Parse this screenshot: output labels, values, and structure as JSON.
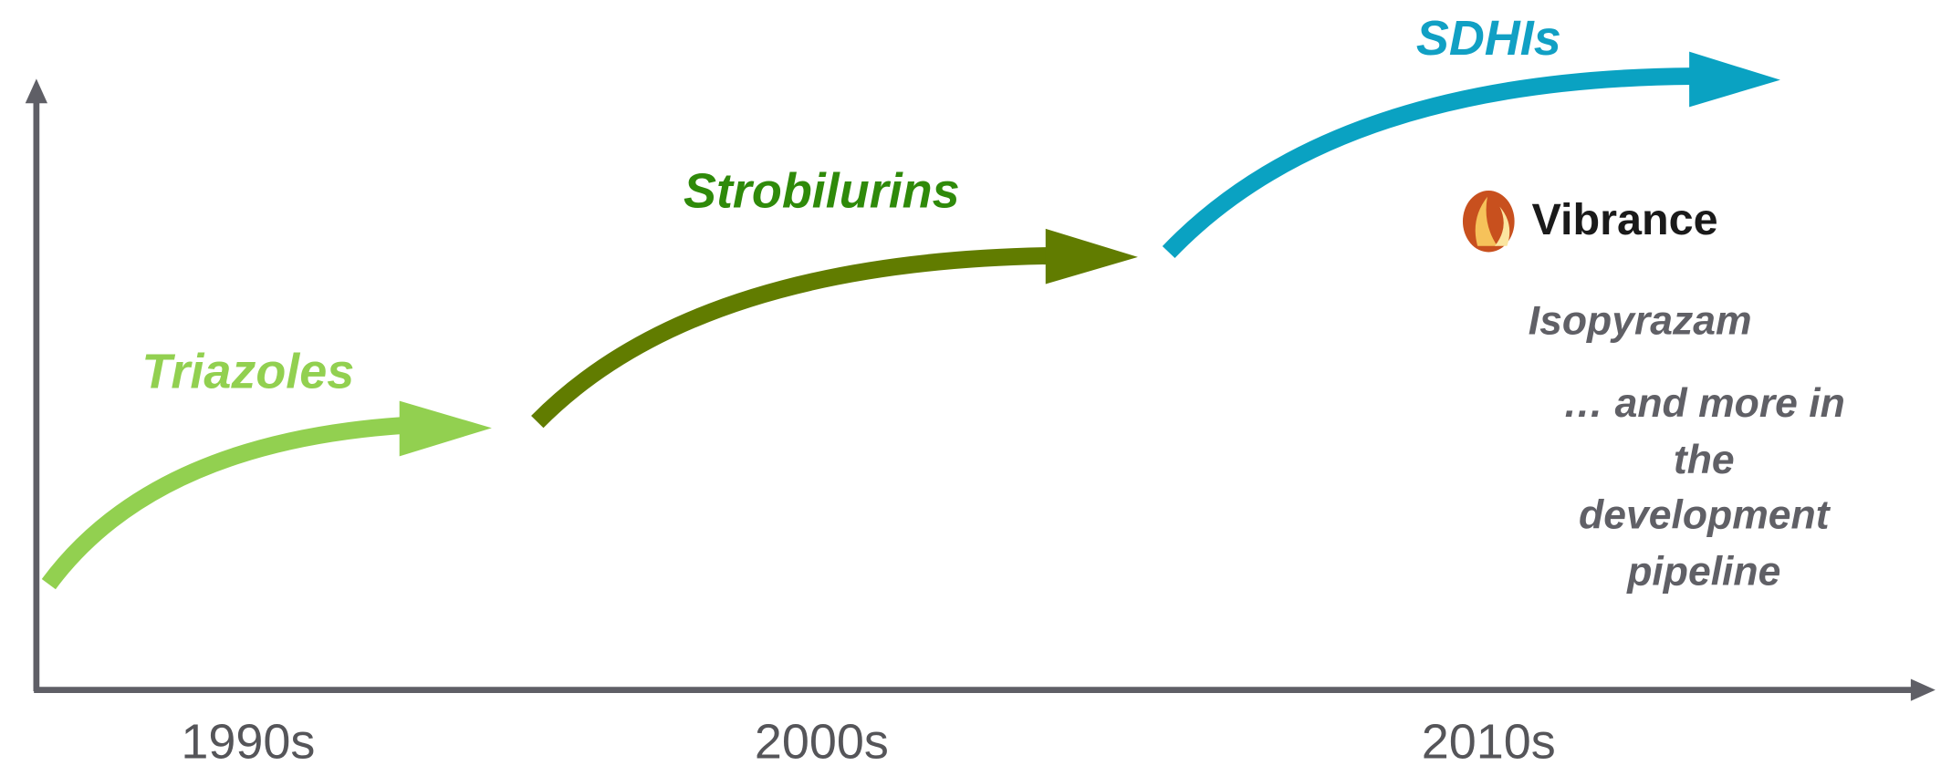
{
  "classes": [
    {
      "label": "Triazoles",
      "era": "1990s"
    },
    {
      "label": "Strobilurins",
      "era": "2000s"
    },
    {
      "label": "SDHIs",
      "era": "2010s"
    }
  ],
  "products": {
    "logo": "Vibrance",
    "compound": "Isopyrazam",
    "pipeline": [
      "… and more in",
      "the",
      "development",
      "pipeline"
    ]
  }
}
